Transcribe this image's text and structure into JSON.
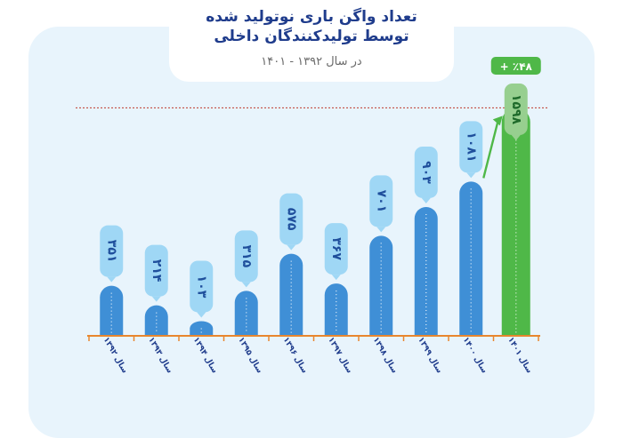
{
  "title_line1": "تعداد واگن باری نوتولید شده",
  "title_line2": "توسط تولیدکنندگان داخلی",
  "subtitle": "در سال ۱۳۹۲ - ۱۴۰۱",
  "growth_badge": "+ ٪۴۸",
  "colors": {
    "bar_blue": "#3f8fd6",
    "bar_green": "#4fb848",
    "label_blue_bg": "#9fd7f5",
    "label_green_bg": "#97cf8f",
    "label_text_blue": "#1f4f9c",
    "label_text_green": "#1e6a2a",
    "axis": "#e8862e",
    "reference_line": "#c0392b",
    "panel": "#e8f4fc"
  },
  "chart_data": {
    "type": "bar",
    "categories": [
      "سال ۱۳۹۲",
      "سال ۱۳۹۳",
      "سال ۱۳۹۴",
      "سال ۱۳۹۵",
      "سال ۱۳۹۶",
      "سال ۱۳۹۷",
      "سال ۱۳۹۸",
      "سال ۱۳۹۹",
      "سال ۱۴۰۰",
      "سال ۱۴۰۱"
    ],
    "values": [
      351,
      214,
      103,
      315,
      575,
      367,
      701,
      903,
      1081,
      1598
    ],
    "value_labels": [
      "۳۵۱",
      "۲۱۴",
      "۱۰۳",
      "۳۱۵",
      "۵۷۵",
      "۳۶۷",
      "۷۰۱",
      "۹۰۳",
      "۱۰۸۱",
      "۱۵۹۸"
    ],
    "highlight_index": 9,
    "ylim": [
      0,
      1700
    ],
    "grid": false
  }
}
